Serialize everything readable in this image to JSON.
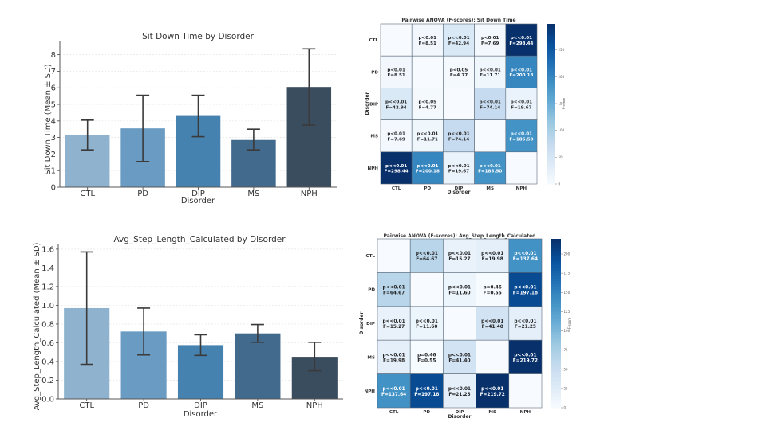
{
  "chart_data": [
    {
      "id": "bar-sit-down",
      "type": "bar",
      "title": "Sit Down Time by Disorder",
      "xlabel": "Disorder",
      "ylabel": "Sit Down Time (Mean ± SD)",
      "categories": [
        "CTL",
        "PD",
        "DIP",
        "MS",
        "NPH"
      ],
      "values": [
        3.15,
        3.55,
        4.3,
        2.85,
        6.05
      ],
      "error_low": [
        2.25,
        1.55,
        3.05,
        2.25,
        3.75
      ],
      "error_high": [
        4.05,
        5.55,
        5.55,
        3.5,
        8.35
      ],
      "colors": [
        "#8fb3cf",
        "#6a9bc2",
        "#4682b0",
        "#426a8c",
        "#3a4d5e"
      ],
      "yticks": [
        "0",
        "1",
        "2",
        "3",
        "4",
        "5",
        "6",
        "7",
        "8"
      ],
      "ytick_values": [
        0,
        1,
        2,
        3,
        4,
        5,
        6,
        7,
        8
      ],
      "ylim": [
        0,
        8.8
      ],
      "grid": true
    },
    {
      "id": "heatmap-sit-down",
      "type": "heatmap",
      "title": "Pairwise ANOVA (F-scores): Sit Down Time",
      "xlabel": "Disorder",
      "ylabel": "Disorder",
      "labels": [
        "CTL",
        "PD",
        "DIP",
        "MS",
        "NPH"
      ],
      "values": [
        [
          0,
          8.51,
          42.94,
          7.69,
          298.44
        ],
        [
          8.51,
          0,
          4.77,
          11.71,
          200.18
        ],
        [
          42.94,
          4.77,
          0,
          74.14,
          19.67
        ],
        [
          7.69,
          11.71,
          74.14,
          0,
          185.5
        ],
        [
          298.44,
          200.18,
          19.67,
          185.5,
          0
        ]
      ],
      "annotations": [
        [
          "",
          "p<0.01\nF=8.51",
          "p<<0.01\nF=42.94",
          "p<0.01\nF=7.69",
          "p<<0.01\nF=298.44"
        ],
        [
          "p<0.01\nF=8.51",
          "",
          "p<0.05\nF=4.77",
          "p<<0.01\nF=11.71",
          "p<<0.01\nF=200.18"
        ],
        [
          "p<<0.01\nF=42.94",
          "p<0.05\nF=4.77",
          "",
          "p<<0.01\nF=74.14",
          "p<<0.01\nF=19.67"
        ],
        [
          "p<0.01\nF=7.69",
          "p<<0.01\nF=11.71",
          "p<<0.01\nF=74.14",
          "",
          "p<<0.01\nF=185.50"
        ],
        [
          "p<<0.01\nF=298.44",
          "p<<0.01\nF=200.18",
          "p<<0.01\nF=19.67",
          "p<<0.01\nF=185.50",
          ""
        ]
      ],
      "colormap": "Blues",
      "vmin": 0,
      "vmax": 298.44,
      "colorbar_label": "F-score",
      "colorbar_ticks": [
        "0",
        "50",
        "100",
        "150",
        "200",
        "250"
      ],
      "colorbar_tick_values": [
        0,
        50,
        100,
        150,
        200,
        250
      ]
    },
    {
      "id": "bar-step-length",
      "type": "bar",
      "title": "Avg_Step_Length_Calculated by Disorder",
      "xlabel": "Disorder",
      "ylabel": "Avg_Step_Length_Calculated (Mean ± SD)",
      "categories": [
        "CTL",
        "PD",
        "DIP",
        "MS",
        "NPH"
      ],
      "values": [
        0.97,
        0.72,
        0.575,
        0.7,
        0.45
      ],
      "error_low": [
        0.37,
        0.47,
        0.465,
        0.605,
        0.3
      ],
      "error_high": [
        1.57,
        0.97,
        0.685,
        0.795,
        0.605
      ],
      "colors": [
        "#8fb3cf",
        "#6a9bc2",
        "#4682b0",
        "#426a8c",
        "#3a4d5e"
      ],
      "yticks": [
        "0.0",
        "0.2",
        "0.4",
        "0.6",
        "0.8",
        "1.0",
        "1.2",
        "1.4",
        "1.6"
      ],
      "ytick_values": [
        0,
        0.2,
        0.4,
        0.6,
        0.8,
        1.0,
        1.2,
        1.4,
        1.6
      ],
      "ylim": [
        0,
        1.65
      ],
      "grid": true
    },
    {
      "id": "heatmap-step-length",
      "type": "heatmap",
      "title": "Pairwise ANOVA (F-scores): Avg_Step_Length_Calculated",
      "xlabel": "Disorder",
      "ylabel": "Disorder",
      "labels": [
        "CTL",
        "PD",
        "DIP",
        "MS",
        "NPH"
      ],
      "values": [
        [
          0,
          64.67,
          15.27,
          19.98,
          137.64
        ],
        [
          64.67,
          0,
          11.6,
          0.55,
          197.18
        ],
        [
          15.27,
          11.6,
          0,
          41.4,
          21.25
        ],
        [
          19.98,
          0.55,
          41.4,
          0,
          219.72
        ],
        [
          137.64,
          197.18,
          21.25,
          219.72,
          0
        ]
      ],
      "annotations": [
        [
          "",
          "p<<0.01\nF=64.67",
          "p<<0.01\nF=15.27",
          "p<<0.01\nF=19.98",
          "p<<0.01\nF=137.64"
        ],
        [
          "p<<0.01\nF=64.67",
          "",
          "p<<0.01\nF=11.60",
          "p=0.46\nF=0.55",
          "p<<0.01\nF=197.18"
        ],
        [
          "p<<0.01\nF=15.27",
          "p<<0.01\nF=11.60",
          "",
          "p<<0.01\nF=41.40",
          "p<<0.01\nF=21.25"
        ],
        [
          "p<<0.01\nF=19.98",
          "p=0.46\nF=0.55",
          "p<<0.01\nF=41.40",
          "",
          "p<<0.01\nF=219.72"
        ],
        [
          "p<<0.01\nF=137.64",
          "p<<0.01\nF=197.18",
          "p<<0.01\nF=21.25",
          "p<<0.01\nF=219.72",
          ""
        ]
      ],
      "colormap": "Blues",
      "vmin": 0,
      "vmax": 219.72,
      "colorbar_label": "F-score",
      "colorbar_ticks": [
        "0",
        "25",
        "50",
        "75",
        "100",
        "125",
        "150",
        "175",
        "200"
      ],
      "colorbar_tick_values": [
        0,
        25,
        50,
        75,
        100,
        125,
        150,
        175,
        200
      ]
    }
  ]
}
